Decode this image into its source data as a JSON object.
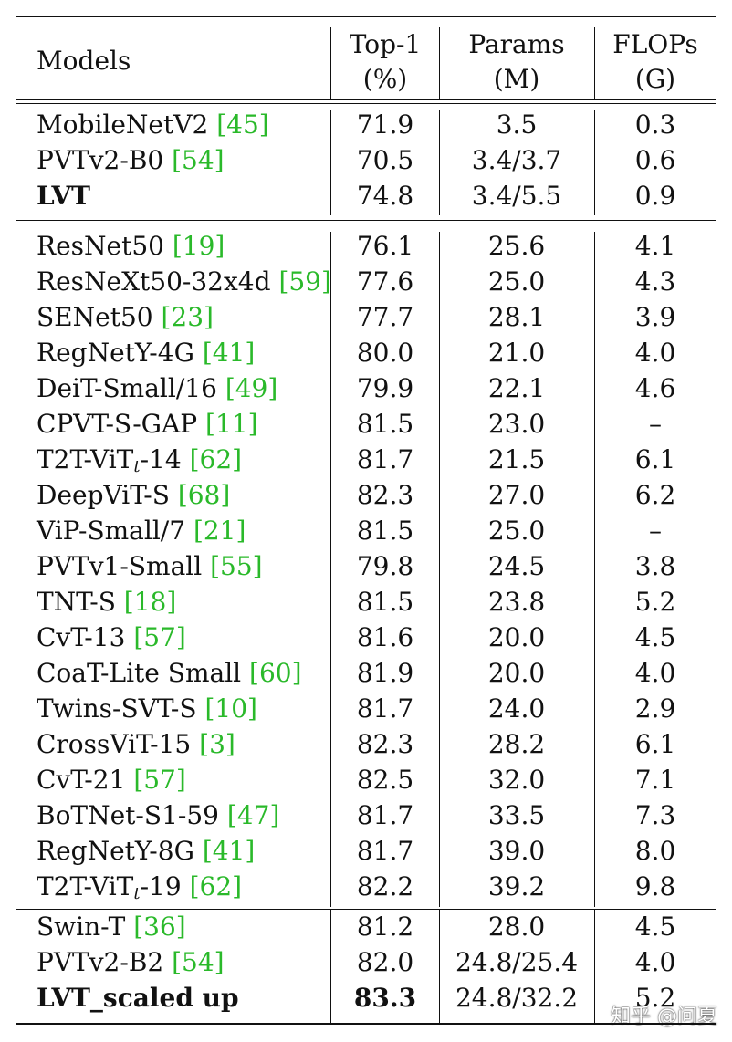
{
  "header": {
    "models": "Models",
    "top1": "Top-1",
    "top1_unit": "(%)",
    "params": "Params",
    "params_unit": "(M)",
    "flops": "FLOPs",
    "flops_unit": "(G)"
  },
  "groups": [
    [
      {
        "name": "MobileNetV2 ",
        "cite": "[45]",
        "top1": "71.9",
        "params": "3.5",
        "flops": "0.3",
        "bold": false
      },
      {
        "name": "PVTv2-B0 ",
        "cite": "[54]",
        "top1": "70.5",
        "params": "3.4/3.7",
        "flops": "0.6",
        "bold": false
      },
      {
        "name": "LVT",
        "cite": "",
        "top1": "74.8",
        "params": "3.4/5.5",
        "flops": "0.9",
        "bold": true
      }
    ],
    [
      {
        "name": "ResNet50 ",
        "cite": "[19]",
        "top1": "76.1",
        "params": "25.6",
        "flops": "4.1",
        "bold": false
      },
      {
        "name": "ResNeXt50-32x4d ",
        "cite": "[59]",
        "top1": "77.6",
        "params": "25.0",
        "flops": "4.3",
        "bold": false
      },
      {
        "name": "SENet50 ",
        "cite": "[23]",
        "top1": "77.7",
        "params": "28.1",
        "flops": "3.9",
        "bold": false
      },
      {
        "name": "RegNetY-4G ",
        "cite": "[41]",
        "top1": "80.0",
        "params": "21.0",
        "flops": "4.0",
        "bold": false
      },
      {
        "name": "DeiT-Small/16 ",
        "cite": "[49]",
        "top1": "79.9",
        "params": "22.1",
        "flops": "4.6",
        "bold": false
      },
      {
        "name": "CPVT-S-GAP ",
        "cite": "[11]",
        "top1": "81.5",
        "params": "23.0",
        "flops": "–",
        "bold": false
      },
      {
        "name": "T2T-ViT",
        "sub": "t",
        "name_after": "-14 ",
        "cite": "[62]",
        "top1": "81.7",
        "params": "21.5",
        "flops": "6.1",
        "bold": false
      },
      {
        "name": "DeepViT-S ",
        "cite": "[68]",
        "top1": "82.3",
        "params": "27.0",
        "flops": "6.2",
        "bold": false
      },
      {
        "name": "ViP-Small/7 ",
        "cite": "[21]",
        "top1": "81.5",
        "params": "25.0",
        "flops": "–",
        "bold": false
      },
      {
        "name": "PVTv1-Small ",
        "cite": "[55]",
        "top1": "79.8",
        "params": "24.5",
        "flops": "3.8",
        "bold": false
      },
      {
        "name": "TNT-S ",
        "cite": "[18]",
        "top1": "81.5",
        "params": "23.8",
        "flops": "5.2",
        "bold": false
      },
      {
        "name": "CvT-13 ",
        "cite": "[57]",
        "top1": "81.6",
        "params": "20.0",
        "flops": "4.5",
        "bold": false
      },
      {
        "name": "CoaT-Lite Small ",
        "cite": "[60]",
        "top1": "81.9",
        "params": "20.0",
        "flops": "4.0",
        "bold": false
      },
      {
        "name": "Twins-SVT-S ",
        "cite": "[10]",
        "top1": "81.7",
        "params": "24.0",
        "flops": "2.9",
        "bold": false
      },
      {
        "name": "CrossViT-15 ",
        "cite": "[3]",
        "top1": "82.3",
        "params": "28.2",
        "flops": "6.1",
        "bold": false
      },
      {
        "name": "CvT-21 ",
        "cite": "[57]",
        "top1": "82.5",
        "params": "32.0",
        "flops": "7.1",
        "bold": false
      },
      {
        "name": "BoTNet-S1-59 ",
        "cite": "[47]",
        "top1": "81.7",
        "params": "33.5",
        "flops": "7.3",
        "bold": false
      },
      {
        "name": "RegNetY-8G ",
        "cite": "[41]",
        "top1": "81.7",
        "params": "39.0",
        "flops": "8.0",
        "bold": false
      },
      {
        "name": "T2T-ViT",
        "sub": "t",
        "name_after": "-19 ",
        "cite": "[62]",
        "top1": "82.2",
        "params": "39.2",
        "flops": "9.8",
        "bold": false
      }
    ],
    [
      {
        "name": "Swin-T ",
        "cite": "[36]",
        "top1": "81.2",
        "params": "28.0",
        "flops": "4.5",
        "bold": false
      },
      {
        "name": "PVTv2-B2 ",
        "cite": "[54]",
        "top1": "82.0",
        "params": "24.8/25.4",
        "flops": "4.0",
        "bold": false
      },
      {
        "name": "LVT_scaled up",
        "cite": "",
        "top1": "83.3",
        "top1_bold": true,
        "params": "24.8/32.2",
        "flops": "5.2",
        "bold": true
      }
    ]
  ],
  "watermark": "知乎 @问夏",
  "colors": {
    "cite": "#2ab92a",
    "text": "#111111"
  }
}
